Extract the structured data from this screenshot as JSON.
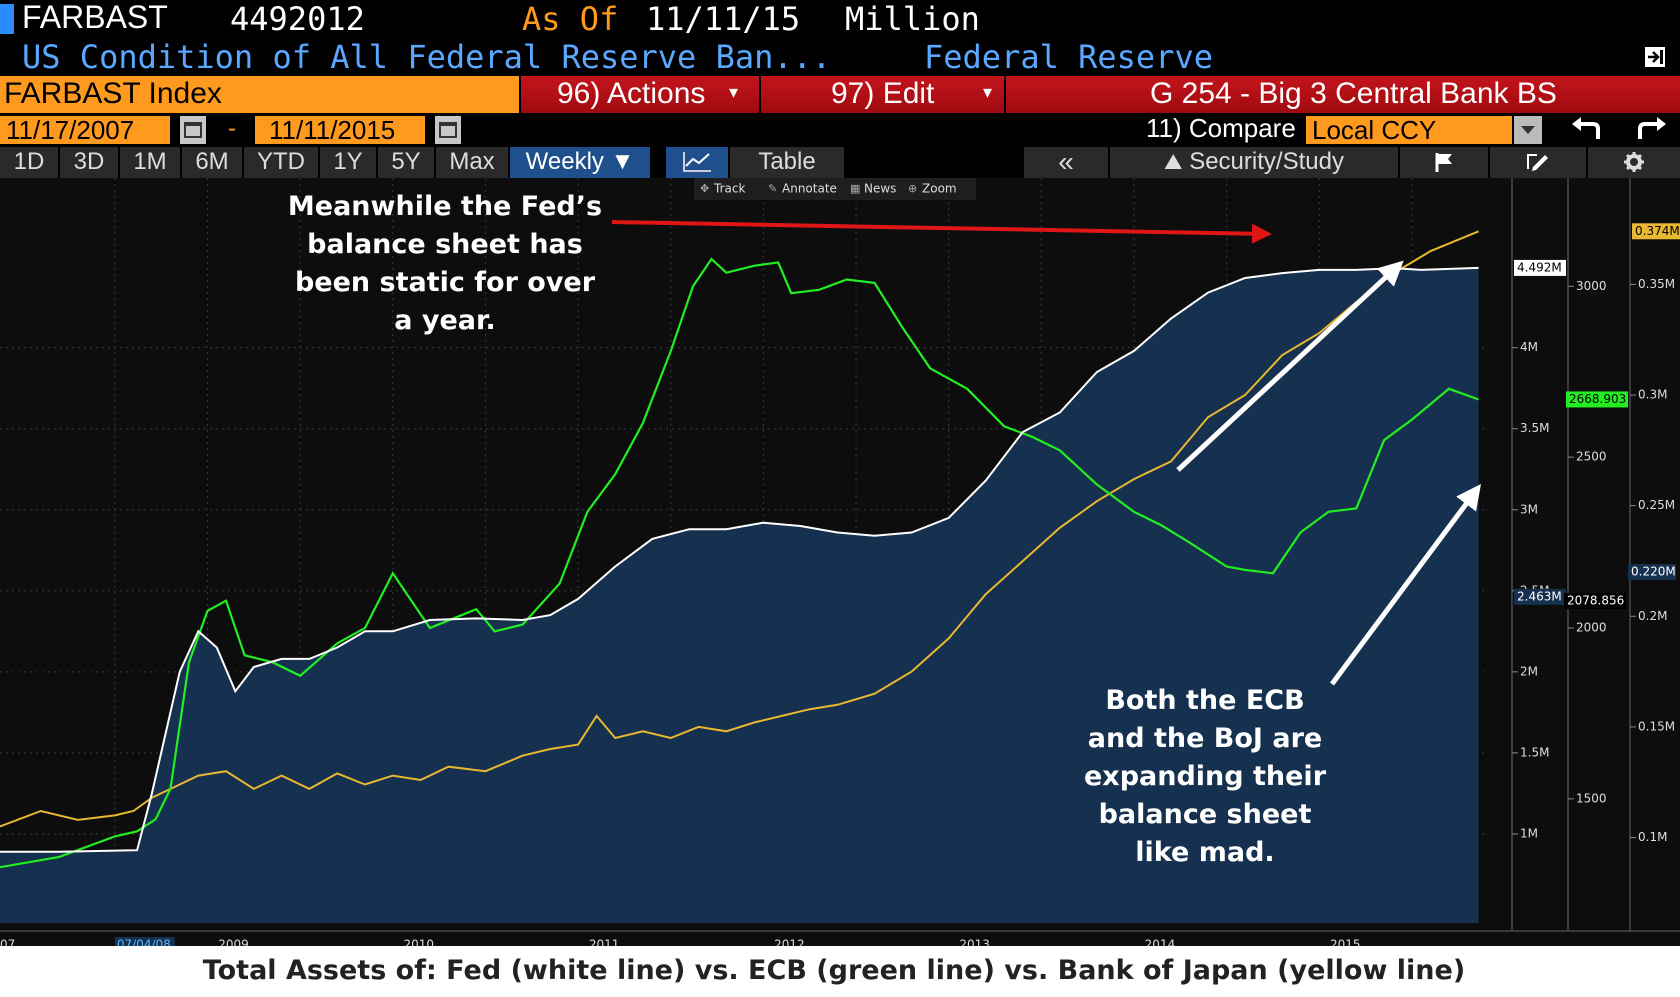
{
  "header": {
    "ticker": "FARBAST",
    "code": "4492012",
    "asof_label": "As Of",
    "asof_date": "11/11/15",
    "unit": "Million",
    "description": "US Condition of All Federal Reserve Ban...",
    "source": "Federal Reserve"
  },
  "toolbar": {
    "index_name": "FARBAST Index",
    "actions_label": "96) Actions",
    "edit_label": "97) Edit",
    "chart_title": "G 254 - Big 3 Central Bank BS",
    "start_date": "11/17/2007",
    "date_dash": "-",
    "end_date": "11/11/2015",
    "compare_label": "11) Compare",
    "currency": "Local CCY"
  },
  "periods": {
    "p1d": "1D",
    "p3d": "3D",
    "p1m": "1M",
    "p6m": "6M",
    "pytd": "YTD",
    "p1y": "1Y",
    "p5y": "5Y",
    "pmax": "Max",
    "frequency": "Weekly ▼",
    "table": "Table",
    "back": "«",
    "security_study": "Security/Study"
  },
  "chart_tools": {
    "track": "Track",
    "annotate": "Annotate",
    "news": "News",
    "zoom": "Zoom"
  },
  "annotations": {
    "fed_static": [
      "Meanwhile the Fed’s",
      "balance sheet has",
      "been static for over",
      "a year."
    ],
    "expanding": [
      "Both the ECB",
      "and the BoJ are",
      "expanding their",
      "balance sheet",
      "like mad."
    ]
  },
  "caption": "Total Assets of: Fed (white line) vs. ECB (green line) vs. Bank of Japan (yellow line)",
  "colors": {
    "fed": "#ffffff",
    "ecb": "#22ee22",
    "boj": "#e8b830",
    "fed_fill": "#16304f",
    "background": "#0d0d0d",
    "orange": "#ff9a1f"
  },
  "chart_data": {
    "type": "line",
    "x_axis": {
      "labels": [
        "07",
        "07/04/08",
        "2009",
        "2010",
        "2011",
        "2012",
        "2013",
        "2014",
        "2015"
      ],
      "range": [
        "2007-11-17",
        "2015-11-11"
      ]
    },
    "axes": {
      "fed": {
        "ticks": [
          "1M",
          "1.5M",
          "2M",
          "2.5M",
          "3M",
          "3.5M",
          "4M"
        ],
        "last_label": "4.492M",
        "marker_label": "2.463M",
        "range": [
          0.5,
          4.8
        ]
      },
      "ecb": {
        "ticks": [
          "1500",
          "2000",
          "2500",
          "3000"
        ],
        "last_label": "2668.903",
        "marker_label": "2078.856",
        "range": [
          1160,
          3200
        ]
      },
      "boj": {
        "ticks": [
          "0.1M",
          "0.15M",
          "0.2M",
          "0.25M",
          "0.3M",
          "0.35M"
        ],
        "last_label": "0.374M",
        "marker_label": "0.220M",
        "range": [
          0.065,
          0.38
        ]
      }
    },
    "series": [
      {
        "name": "Fed",
        "x": [
          2007.88,
          2008.2,
          2008.62,
          2008.7,
          2008.85,
          2008.95,
          2009.05,
          2009.15,
          2009.25,
          2009.4,
          2009.55,
          2009.7,
          2009.85,
          2010.0,
          2010.2,
          2010.45,
          2010.7,
          2010.85,
          2011.0,
          2011.2,
          2011.4,
          2011.6,
          2011.8,
          2012.0,
          2012.2,
          2012.4,
          2012.6,
          2012.8,
          2013.0,
          2013.2,
          2013.4,
          2013.6,
          2013.8,
          2014.0,
          2014.2,
          2014.4,
          2014.6,
          2014.8,
          2015.0,
          2015.2,
          2015.4,
          2015.55,
          2015.86
        ],
        "values": [
          0.89,
          0.89,
          0.9,
          1.25,
          2.0,
          2.25,
          2.15,
          1.88,
          2.03,
          2.08,
          2.08,
          2.15,
          2.25,
          2.25,
          2.32,
          2.33,
          2.32,
          2.35,
          2.45,
          2.65,
          2.82,
          2.88,
          2.88,
          2.92,
          2.9,
          2.86,
          2.84,
          2.86,
          2.95,
          3.18,
          3.48,
          3.6,
          3.85,
          3.98,
          4.18,
          4.34,
          4.43,
          4.46,
          4.48,
          4.48,
          4.49,
          4.48,
          4.492
        ]
      },
      {
        "name": "ECB",
        "x": [
          2007.88,
          2008.2,
          2008.5,
          2008.62,
          2008.72,
          2008.8,
          2008.9,
          2009.0,
          2009.1,
          2009.2,
          2009.35,
          2009.5,
          2009.7,
          2009.85,
          2010.0,
          2010.2,
          2010.45,
          2010.55,
          2010.7,
          2010.9,
          2011.05,
          2011.2,
          2011.35,
          2011.5,
          2011.62,
          2011.72,
          2011.8,
          2011.95,
          2012.08,
          2012.15,
          2012.3,
          2012.45,
          2012.6,
          2012.75,
          2012.9,
          2013.1,
          2013.3,
          2013.45,
          2013.6,
          2013.8,
          2014.0,
          2014.15,
          2014.3,
          2014.5,
          2014.6,
          2014.75,
          2014.9,
          2015.05,
          2015.2,
          2015.35,
          2015.5,
          2015.7,
          2015.86
        ],
        "values": [
          1300,
          1330,
          1390,
          1405,
          1440,
          1530,
          1900,
          2050,
          2080,
          1920,
          1900,
          1860,
          1955,
          2000,
          2160,
          2000,
          2055,
          1990,
          2010,
          2130,
          2340,
          2450,
          2600,
          2810,
          3000,
          3080,
          3040,
          3060,
          3070,
          2980,
          2990,
          3020,
          3010,
          2880,
          2760,
          2700,
          2590,
          2560,
          2520,
          2420,
          2340,
          2300,
          2250,
          2180,
          2170,
          2160,
          2280,
          2340,
          2350,
          2550,
          2610,
          2700,
          2668.903
        ]
      },
      {
        "name": "Bank of Japan",
        "x": [
          2007.88,
          2008.1,
          2008.3,
          2008.5,
          2008.6,
          2008.7,
          2008.8,
          2008.95,
          2009.1,
          2009.25,
          2009.4,
          2009.55,
          2009.7,
          2009.85,
          2010.0,
          2010.15,
          2010.3,
          2010.5,
          2010.7,
          2010.85,
          2011.0,
          2011.1,
          2011.2,
          2011.35,
          2011.5,
          2011.65,
          2011.8,
          2011.95,
          2012.1,
          2012.25,
          2012.4,
          2012.6,
          2012.8,
          2013.0,
          2013.2,
          2013.4,
          2013.6,
          2013.8,
          2014.0,
          2014.2,
          2014.4,
          2014.6,
          2014.8,
          2015.0,
          2015.2,
          2015.4,
          2015.6,
          2015.86
        ],
        "values": [
          0.105,
          0.112,
          0.108,
          0.11,
          0.112,
          0.118,
          0.122,
          0.128,
          0.13,
          0.122,
          0.128,
          0.122,
          0.129,
          0.124,
          0.128,
          0.126,
          0.132,
          0.13,
          0.137,
          0.14,
          0.142,
          0.155,
          0.145,
          0.148,
          0.145,
          0.15,
          0.148,
          0.152,
          0.155,
          0.158,
          0.16,
          0.165,
          0.175,
          0.19,
          0.21,
          0.225,
          0.24,
          0.252,
          0.262,
          0.27,
          0.29,
          0.3,
          0.318,
          0.328,
          0.342,
          0.355,
          0.365,
          0.374
        ]
      }
    ]
  }
}
